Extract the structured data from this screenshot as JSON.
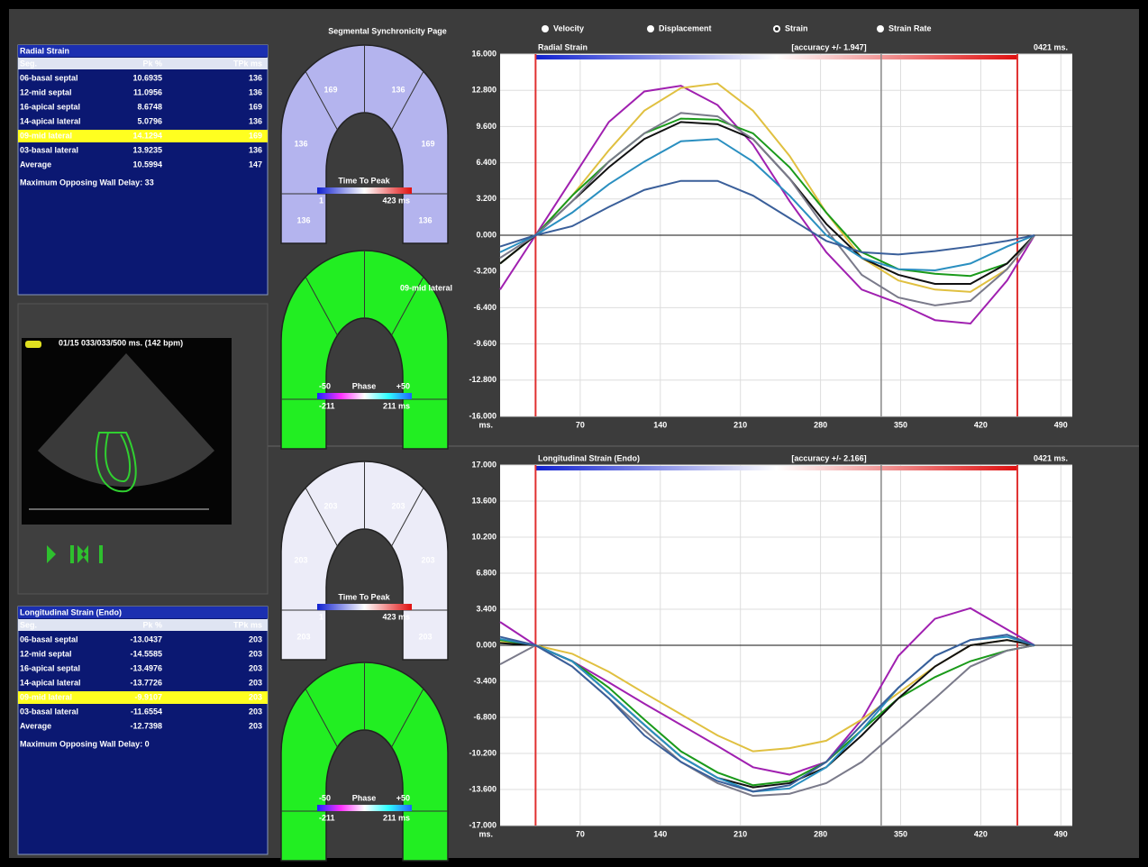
{
  "header": {
    "page_title": "Segmental Synchronicity Page",
    "modes": [
      "Velocity",
      "Displacement",
      "Strain",
      "Strain Rate"
    ],
    "selected_mode": 2
  },
  "tables": [
    {
      "title": "Radial Strain",
      "headers": [
        "Seg.",
        "Pk %",
        "TPk ms"
      ],
      "highlight_row": 4,
      "colors": [
        "#2ee02e",
        "#ffffff",
        "#33c8ff",
        "#2a6cff",
        "#000000",
        "#e040ff",
        "#ffffff"
      ],
      "rows": [
        [
          "06-basal septal",
          "10.6935",
          "136"
        ],
        [
          "12-mid septal",
          "11.0956",
          "136"
        ],
        [
          "16-apical septal",
          "8.6748",
          "169"
        ],
        [
          "14-apical lateral",
          "5.0796",
          "136"
        ],
        [
          "09-mid lateral",
          "14.1294",
          "169"
        ],
        [
          "03-basal lateral",
          "13.9235",
          "136"
        ],
        [
          "Average",
          "10.5994",
          "147"
        ]
      ],
      "footer": "Maximum Opposing Wall Delay: 33"
    },
    {
      "title": "Longitudinal Strain (Endo)",
      "headers": [
        "Seg.",
        "Pk %",
        "TPk ms"
      ],
      "highlight_row": 4,
      "colors": [
        "#2ee02e",
        "#ffffff",
        "#33c8ff",
        "#2a6cff",
        "#000000",
        "#e040ff",
        "#ffffff"
      ],
      "rows": [
        [
          "06-basal septal",
          "-13.0437",
          "203"
        ],
        [
          "12-mid septal",
          "-14.5585",
          "203"
        ],
        [
          "16-apical septal",
          "-13.4976",
          "203"
        ],
        [
          "14-apical lateral",
          "-13.7726",
          "203"
        ],
        [
          "09-mid lateral",
          "-9.9107",
          "203"
        ],
        [
          "03-basal lateral",
          "-11.6554",
          "203"
        ],
        [
          "Average",
          "-12.7398",
          "203"
        ]
      ],
      "footer": "Maximum Opposing Wall Delay: 0"
    }
  ],
  "echo": {
    "caption": "01/15 033/033/500 ms. (142 bpm)"
  },
  "diagrams": [
    {
      "kind": "time",
      "color": "#b4b4ee",
      "segments": [
        "136",
        "136",
        "169",
        "136",
        "169",
        "136"
      ],
      "scale_title": "Time To Peak",
      "scale_min": "1",
      "scale_max": "423 ms"
    },
    {
      "kind": "phase",
      "color": "#22ee22",
      "scale_title": "Phase",
      "top_min": "-50",
      "top_max": "+50",
      "scale_min": "-211",
      "scale_max": "211 ms",
      "label": "09-mid lateral"
    },
    {
      "kind": "time",
      "color": "#ececf8",
      "segments": [
        "203",
        "203",
        "203",
        "203",
        "203",
        "203"
      ],
      "scale_title": "Time To Peak",
      "scale_min": "1",
      "scale_max": "423 ms"
    },
    {
      "kind": "phase",
      "color": "#22ee22",
      "scale_title": "Phase",
      "top_min": "-50",
      "top_max": "+50",
      "scale_min": "-211",
      "scale_max": "211 ms"
    }
  ],
  "chart_data": [
    {
      "type": "line",
      "title": "Radial Strain",
      "annotations": [
        "[accuracy +/- 1.947]",
        "0421 ms."
      ],
      "x_label": "ms.",
      "grid": true,
      "xlim": [
        0,
        500
      ],
      "xticks": [
        70,
        140,
        210,
        280,
        350,
        420,
        490
      ],
      "ylim": [
        -16,
        16
      ],
      "yticks": [
        {
          "value": 16,
          "label": "16.000"
        },
        {
          "value": 12.8,
          "label": "12.800"
        },
        {
          "value": 9.6,
          "label": "9.600"
        },
        {
          "value": 6.4,
          "label": "6.400"
        },
        {
          "value": 3.2,
          "label": "3.200"
        },
        {
          "value": 0,
          "label": "0.000"
        },
        {
          "value": -3.2,
          "label": "-3.200"
        },
        {
          "value": -6.4,
          "label": "-6.400"
        },
        {
          "value": -9.6,
          "label": "-9.600"
        },
        {
          "value": -12.8,
          "label": "-12.800"
        },
        {
          "value": -16,
          "label": "-16.000"
        }
      ],
      "markers": [
        31,
        452
      ],
      "cursor": 333,
      "x": [
        0,
        31,
        63,
        95,
        126,
        158,
        190,
        221,
        253,
        285,
        316,
        348,
        380,
        411,
        443,
        467
      ],
      "series": [
        {
          "color": "#a020b0",
          "values": [
            -4.8,
            0,
            5,
            10,
            12.7,
            13.2,
            11.5,
            8,
            3,
            -1.5,
            -4.8,
            -6,
            -7.5,
            -7.8,
            -4,
            0
          ]
        },
        {
          "color": "#e0c040",
          "values": [
            -2.5,
            0,
            3.5,
            7.5,
            11,
            13,
            13.4,
            11,
            7,
            2,
            -2,
            -4,
            -4.8,
            -5,
            -3,
            0
          ]
        },
        {
          "color": "#1a9a1a",
          "values": [
            -2.5,
            0,
            3.5,
            6.5,
            9,
            10.3,
            10.2,
            9,
            6,
            2,
            -1.5,
            -3,
            -3.4,
            -3.6,
            -2.5,
            0
          ]
        },
        {
          "color": "#111111",
          "values": [
            -2.5,
            0,
            3,
            6,
            8.5,
            10,
            9.8,
            8.5,
            5,
            1,
            -2,
            -3.5,
            -4.3,
            -4.3,
            -2.5,
            0
          ]
        },
        {
          "color": "#7a7a8a",
          "values": [
            -2,
            0,
            3,
            6.5,
            9,
            10.8,
            10.5,
            8.5,
            5,
            0.5,
            -3.5,
            -5.5,
            -6.2,
            -5.8,
            -3,
            0
          ]
        },
        {
          "color": "#2a8fc0",
          "values": [
            -1.5,
            0,
            2,
            4.5,
            6.5,
            8.3,
            8.5,
            6.5,
            3.5,
            0,
            -2,
            -3,
            -3.1,
            -2.5,
            -1,
            0
          ]
        },
        {
          "color": "#3a5f9a",
          "values": [
            -1,
            0,
            0.8,
            2.5,
            4,
            4.8,
            4.8,
            3.5,
            1.5,
            -0.5,
            -1.5,
            -1.7,
            -1.4,
            -1,
            -0.5,
            0
          ]
        }
      ]
    },
    {
      "type": "line",
      "title": "Longitudinal Strain (Endo)",
      "annotations": [
        "[accuracy +/- 2.166]",
        "0421 ms."
      ],
      "x_label": "ms.",
      "grid": true,
      "xlim": [
        0,
        500
      ],
      "xticks": [
        70,
        140,
        210,
        280,
        350,
        420,
        490
      ],
      "ylim": [
        -17,
        17
      ],
      "yticks": [
        {
          "value": 17,
          "label": "17.000"
        },
        {
          "value": 13.6,
          "label": "13.600"
        },
        {
          "value": 10.2,
          "label": "10.200"
        },
        {
          "value": 6.8,
          "label": "6.800"
        },
        {
          "value": 3.4,
          "label": "3.400"
        },
        {
          "value": 0,
          "label": "0.000"
        },
        {
          "value": -3.4,
          "label": "-3.400"
        },
        {
          "value": -6.8,
          "label": "-6.800"
        },
        {
          "value": -10.2,
          "label": "-10.200"
        },
        {
          "value": -13.6,
          "label": "-13.600"
        },
        {
          "value": -17,
          "label": "-17.000"
        }
      ],
      "markers": [
        31,
        452
      ],
      "cursor": 333,
      "x": [
        0,
        31,
        63,
        95,
        126,
        158,
        190,
        221,
        253,
        285,
        316,
        348,
        380,
        411,
        443,
        467
      ],
      "series": [
        {
          "color": "#a020b0",
          "values": [
            2.2,
            0,
            -1.5,
            -3.5,
            -5.5,
            -7.5,
            -9.5,
            -11.5,
            -12.2,
            -11,
            -7,
            -1,
            2.5,
            3.5,
            1.5,
            0
          ]
        },
        {
          "color": "#e0c040",
          "values": [
            0.3,
            0,
            -0.8,
            -2.5,
            -4.5,
            -6.5,
            -8.5,
            -10,
            -9.7,
            -9,
            -7,
            -4.5,
            -2,
            0,
            0.5,
            0
          ]
        },
        {
          "color": "#1a9a1a",
          "values": [
            0.5,
            0,
            -1.5,
            -4,
            -7,
            -10,
            -12,
            -13.2,
            -12.8,
            -11,
            -8,
            -5,
            -3,
            -1.5,
            -0.5,
            0
          ]
        },
        {
          "color": "#111111",
          "values": [
            0.2,
            0,
            -1.5,
            -4.5,
            -7.5,
            -10.5,
            -12.5,
            -13.4,
            -13,
            -11.5,
            -8.5,
            -5,
            -2,
            0,
            0.5,
            0
          ]
        },
        {
          "color": "#7a7a8a",
          "values": [
            -1.8,
            0,
            -2,
            -5,
            -8,
            -11,
            -13,
            -14.2,
            -14,
            -13,
            -11,
            -8,
            -5,
            -2,
            -0.5,
            0
          ]
        },
        {
          "color": "#2a8fc0",
          "values": [
            0.6,
            0,
            -1.5,
            -4.5,
            -7.5,
            -10.5,
            -12.5,
            -13.8,
            -13.5,
            -11.5,
            -8,
            -4,
            -1,
            0.5,
            0.8,
            0
          ]
        },
        {
          "color": "#3a5f9a",
          "values": [
            0.8,
            0,
            -2,
            -5,
            -8.5,
            -11,
            -12.8,
            -13.8,
            -13.2,
            -11,
            -7.5,
            -4,
            -1,
            0.5,
            1,
            0
          ]
        }
      ]
    }
  ]
}
